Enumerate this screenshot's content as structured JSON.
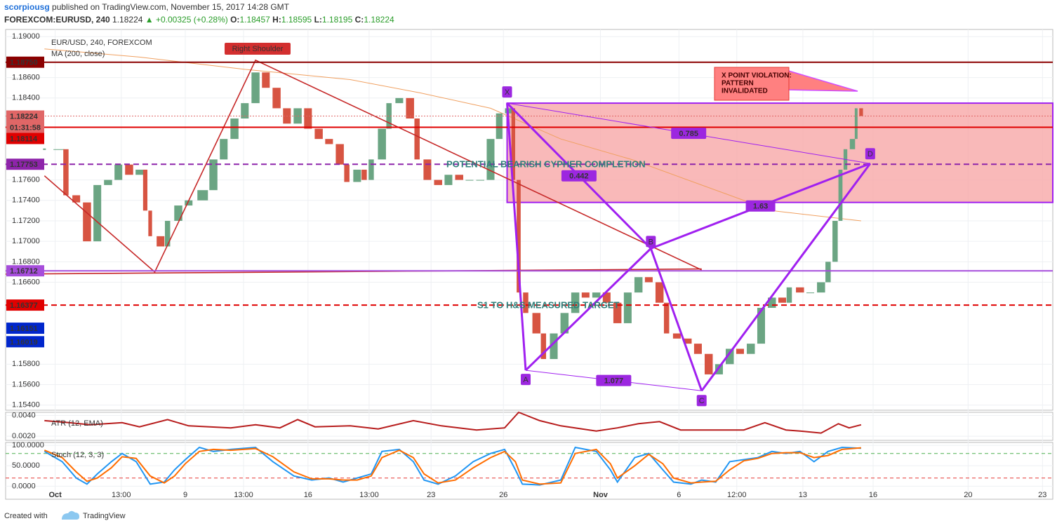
{
  "header": {
    "author": "scorpiousg",
    "published": "published on TradingView.com, November 15, 2017 14:28 GMT",
    "symbol": "FOREXCOM:EURUSD, 240",
    "last": "1.18224",
    "change": "▲ +0.00325 (+0.28%)",
    "ohlc": [
      {
        "label": "O:",
        "value": "1.18457"
      },
      {
        "label": "H:",
        "value": "1.18595"
      },
      {
        "label": "L:",
        "value": "1.18195"
      },
      {
        "label": "C:",
        "value": "1.18224"
      }
    ]
  },
  "chart_data": {
    "type": "candlestick",
    "title": "EUR/USD, 240, FOREXCOM",
    "up_color": "#6ba583",
    "down_color": "#d75442",
    "x": [
      -2.6,
      0.9,
      2.6,
      5.1,
      7.7,
      10.2,
      12.8,
      15.3,
      17.9,
      20.4,
      21.8,
      23,
      25.5,
      27.2,
      29.8,
      32.3,
      35.7,
      38.3,
      40.8,
      43.4,
      45.9,
      48.5,
      51,
      53.6,
      56.1,
      58.7,
      61.2,
      63.8,
      66.3,
      68.9,
      70.6,
      73.1,
      74.8,
      76.5,
      79.1,
      80.8,
      83.3,
      85.9,
      87.6,
      90.1,
      92.7,
      95.2,
      97.8,
      100.3,
      102.9,
      105.4,
      107.5,
      109.7,
      110.9,
      112.2,
      113.9,
      116.5,
      118.2,
      120.7,
      123.3,
      125.9,
      128.4,
      131,
      133.5,
      136.1,
      138.6,
      141.2,
      143.7,
      146.3,
      148,
      150.5,
      153.1,
      155.6,
      158.2,
      160.7,
      163.3,
      165.8,
      168.4,
      170.9,
      173.5,
      176,
      177.7,
      180.3,
      182.8,
      185.4,
      187.1,
      188.8,
      190.1,
      191.3,
      193,
      193.9,
      195.1
    ],
    "values": [
      1.179,
      1.179,
      1.1745,
      1.1738,
      1.17,
      1.1755,
      1.176,
      1.1775,
      1.1765,
      1.177,
      1.173,
      1.1705,
      1.1695,
      1.172,
      1.1735,
      1.174,
      1.175,
      1.178,
      1.18,
      1.182,
      1.1835,
      1.1865,
      1.185,
      1.183,
      1.1815,
      1.183,
      1.181,
      1.18,
      1.1795,
      1.1775,
      1.1758,
      1.177,
      1.176,
      1.178,
      1.181,
      1.1835,
      1.184,
      1.182,
      1.178,
      1.176,
      1.1755,
      1.1765,
      1.176,
      1.176,
      1.176,
      1.18,
      1.1825,
      1.183,
      1.176,
      1.165,
      1.163,
      1.161,
      1.1585,
      1.161,
      1.163,
      1.165,
      1.1645,
      1.165,
      1.164,
      1.162,
      1.165,
      1.1665,
      1.166,
      1.164,
      1.161,
      1.1605,
      1.16,
      1.159,
      1.157,
      1.158,
      1.1595,
      1.159,
      1.16,
      1.1635,
      1.1645,
      1.164,
      1.1655,
      1.165,
      1.165,
      1.166,
      1.168,
      1.172,
      1.177,
      1.179,
      1.18,
      1.183,
      1.18224
    ],
    "ma": {
      "name": "MA (200, close)",
      "color": "#f0a060",
      "x": [
        -2.6,
        20.4,
        45.9,
        71.4,
        88.4,
        105.4,
        122.4,
        139.5,
        156.5,
        173.5,
        195.1
      ],
      "values": [
        1.1888,
        1.188,
        1.1868,
        1.1858,
        1.1845,
        1.183,
        1.18,
        1.178,
        1.1755,
        1.173,
        1.172
      ]
    },
    "xlim": [
      -12,
      241.5
    ],
    "xticks": [
      {
        "value": 0,
        "label": "Oct"
      },
      {
        "value": 16,
        "label": "13:00"
      },
      {
        "value": 31.5,
        "label": "9"
      },
      {
        "value": 45.6,
        "label": "13:00"
      },
      {
        "value": 61.2,
        "label": "16"
      },
      {
        "value": 76,
        "label": "13:00"
      },
      {
        "value": 91,
        "label": "23"
      },
      {
        "value": 108.5,
        "label": "26"
      },
      {
        "value": 132,
        "label": "Nov"
      },
      {
        "value": 151,
        "label": "6"
      },
      {
        "value": 165,
        "label": "12:00"
      },
      {
        "value": 181,
        "label": "13"
      },
      {
        "value": 198,
        "label": "16"
      },
      {
        "value": 221,
        "label": "20"
      },
      {
        "value": 239,
        "label": "23"
      }
    ],
    "ylim": [
      1.1535,
      1.1907
    ],
    "yticks": [
      {
        "value": 1.19,
        "label": "1.19000"
      },
      {
        "value": 1.186,
        "label": "1.18600"
      },
      {
        "value": 1.184,
        "label": "1.18400"
      },
      {
        "value": 1.176,
        "label": "1.17600"
      },
      {
        "value": 1.174,
        "label": "1.17400"
      },
      {
        "value": 1.172,
        "label": "1.17200"
      },
      {
        "value": 1.17,
        "label": "1.17000"
      },
      {
        "value": 1.168,
        "label": "1.16800"
      },
      {
        "value": 1.166,
        "label": "1.16600"
      },
      {
        "value": 1.158,
        "label": "1.15800"
      },
      {
        "value": 1.156,
        "label": "1.15600"
      },
      {
        "value": 1.154,
        "label": "1.15400"
      }
    ],
    "grid": true,
    "price_lines": [
      {
        "value": 1.1875,
        "label": "1.18750",
        "color": "#8b0000",
        "style": "solid"
      },
      {
        "value": 1.18224,
        "label": "1.18224",
        "countdown": "01:31:58",
        "color": "#e06666",
        "style": "dotted"
      },
      {
        "value": 1.18114,
        "label": "1.18114",
        "color": "#e00000",
        "style": "solid"
      },
      {
        "value": 1.17753,
        "label": "1.17753",
        "color": "#8e24aa",
        "style": "dashed"
      },
      {
        "value": 1.16712,
        "label": "1.16712",
        "color": "#a64ddb",
        "style": "solid"
      },
      {
        "value": 1.16377,
        "label": "1.16377",
        "color": "#e00000",
        "style": "dashed"
      },
      {
        "value": 1.16151,
        "label": "1.16151",
        "color": "#0026cc",
        "style": "none"
      },
      {
        "value": 1.16019,
        "label": "1.16019",
        "color": "#0026cc",
        "style": "none"
      }
    ],
    "zone": {
      "x": 109.4,
      "y": [
        1.1835,
        1.1738
      ],
      "color": "#f7a8a8",
      "border": "#a020f0"
    },
    "trendlines": {
      "color": "#c62828",
      "lines": [
        {
          "x": [
            -2.6,
            24.1,
            48.5,
            156.5
          ],
          "y": [
            1.1764,
            1.167,
            1.1877,
            1.1672
          ]
        },
        {
          "x": [
            -12,
            156.5
          ],
          "y": [
            1.1668,
            1.1673
          ]
        }
      ]
    },
    "pattern": {
      "color": "#a020f0",
      "points": [
        {
          "label": "X",
          "x": 109.4,
          "y": 1.1835
        },
        {
          "label": "A",
          "x": 113.9,
          "y": 1.1574
        },
        {
          "label": "B",
          "x": 144.2,
          "y": 1.1693
        },
        {
          "label": "C",
          "x": 156.5,
          "y": 1.1554
        },
        {
          "label": "D",
          "x": 197.3,
          "y": 1.1776
        }
      ],
      "ratios": [
        0.785,
        0.442,
        1.63,
        1.077
      ]
    },
    "annotations": {
      "right_shoulder": "Right Shoulder",
      "cypher": "POTENTIAL BEARISH CYPHER COMPLETION",
      "target": "S1 TO H&S MEASURED TARGET",
      "violation": [
        "X POINT VIOLATION:",
        "PATTERN",
        "INVALIDATED"
      ]
    },
    "indicators": [
      {
        "type": "line",
        "title": "ATR (12, EMA)",
        "color": "#b71c1c",
        "ylim": [
          0.0016,
          0.0043
        ],
        "yticks": [
          {
            "value": 0.004,
            "label": "0.0040"
          },
          {
            "value": 0.002,
            "label": "0.0020"
          }
        ],
        "x": [
          -2.6,
          3.4,
          8.5,
          16.2,
          20.4,
          27.2,
          32.3,
          42.5,
          48.5,
          54.4,
          58.7,
          62.9,
          71.4,
          78.2,
          86.7,
          93.5,
          102,
          108.8,
          112.2,
          117.3,
          122.4,
          131,
          136.1,
          141.2,
          146.3,
          151.4,
          158.2,
          166.7,
          171.8,
          176.9,
          180.3,
          185.4,
          189.6,
          192.2,
          195.1
        ],
        "values": [
          0.0035,
          0.0033,
          0.0031,
          0.0033,
          0.0029,
          0.0036,
          0.003,
          0.0028,
          0.0031,
          0.0028,
          0.0036,
          0.0029,
          0.003,
          0.0027,
          0.0035,
          0.003,
          0.0026,
          0.0028,
          0.0043,
          0.0035,
          0.003,
          0.0025,
          0.0028,
          0.0032,
          0.0034,
          0.0026,
          0.0026,
          0.0026,
          0.0033,
          0.0026,
          0.0025,
          0.0023,
          0.0032,
          0.0028,
          0.0031
        ]
      },
      {
        "type": "line",
        "title": "Stoch (12, 3, 3)",
        "ylim": [
          -32,
          107
        ],
        "yticks": [
          {
            "value": 100,
            "label": "100.0000"
          },
          {
            "value": 50,
            "label": "50.0000"
          },
          {
            "value": 0,
            "label": "0.0000"
          }
        ],
        "levels": [
          {
            "value": 80,
            "color": "#4caf50"
          },
          {
            "value": 20,
            "color": "#e53935"
          }
        ],
        "x": [
          -2.6,
          1.7,
          5.1,
          7.7,
          10.2,
          13.6,
          16.2,
          19.6,
          23,
          26.4,
          28.9,
          31.5,
          34.9,
          38.3,
          42.5,
          48.5,
          52.7,
          57.8,
          62.1,
          66.3,
          69.7,
          73.1,
          76.5,
          79.1,
          83.3,
          86.7,
          89.3,
          92.7,
          96.9,
          101.2,
          105.4,
          108.8,
          111.4,
          113.1,
          117.3,
          122.4,
          125.9,
          131,
          134.4,
          136.1,
          140.3,
          143.7,
          147.1,
          149.7,
          153.9,
          156.5,
          159.9,
          163.3,
          166.7,
          170.1,
          173.5,
          176.9,
          180.3,
          183.7,
          187.1,
          190.5,
          195.1
        ],
        "series": [
          {
            "color": "#2196f3",
            "values": [
              85,
              60,
              20,
              5,
              30,
              60,
              80,
              60,
              5,
              10,
              40,
              65,
              95,
              85,
              90,
              95,
              60,
              25,
              15,
              20,
              10,
              20,
              30,
              85,
              90,
              60,
              15,
              5,
              25,
              60,
              80,
              90,
              40,
              5,
              3,
              15,
              95,
              85,
              40,
              10,
              70,
              80,
              40,
              10,
              5,
              15,
              10,
              60,
              65,
              70,
              85,
              80,
              85,
              60,
              85,
              95,
              93
            ]
          },
          {
            "color": "#ff6d00",
            "values": [
              88,
              70,
              35,
              12,
              20,
              45,
              72,
              68,
              25,
              8,
              25,
              55,
              85,
              90,
              88,
              92,
              72,
              35,
              18,
              18,
              15,
              15,
              25,
              70,
              88,
              70,
              30,
              8,
              15,
              45,
              70,
              85,
              60,
              15,
              5,
              8,
              80,
              90,
              55,
              20,
              50,
              78,
              55,
              20,
              8,
              10,
              12,
              40,
              62,
              68,
              80,
              82,
              82,
              70,
              75,
              90,
              94
            ]
          }
        ]
      }
    ]
  },
  "footer": {
    "created": "Created with",
    "brand": "TradingView"
  }
}
